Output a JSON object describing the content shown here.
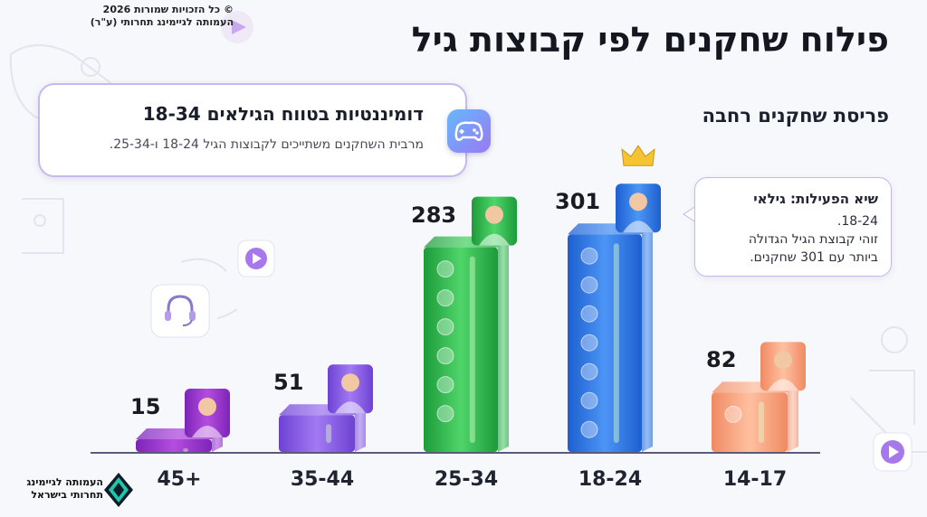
{
  "copyright": {
    "line1": "© כל הזכויות שמורות 2026",
    "line2": "העמותה לגיימינג תחרותי (ע\"ר)"
  },
  "title": "פילוח שחקנים לפי קבוצות גיל",
  "subtitle": "פריסת שחקנים רחבה",
  "info_card": {
    "title": "דומיננטיות בטווח הגילאים 18-34",
    "text": "מרבית השחקנים משתייכים לקבוצות הגיל 18-24 ו-25-34.",
    "icon": "gamepad-icon"
  },
  "callout": {
    "title": "שיא הפעילות: גילאי",
    "line1": "18-24.",
    "line2": "זוהי קבוצת הגיל הגדולה",
    "line3": "ביותר עם 301 שחקנים."
  },
  "logo": {
    "line1": "העמותה לגיימינג",
    "line2": "תחרותי בישראל"
  },
  "colors": {
    "bar_45": "#9b3bd6",
    "bar_35": "#8e5ee8",
    "bar_25": "#2fb84a",
    "bar_18": "#2f74e6",
    "bar_14": "#f59a72"
  },
  "chart_data": {
    "type": "bar",
    "title": "פילוח שחקנים לפי קבוצות גיל",
    "categories": [
      "45+",
      "35-44",
      "25-34",
      "18-24",
      "14-17"
    ],
    "values": [
      15,
      51,
      283,
      301,
      82
    ],
    "ylim": [
      0,
      320
    ],
    "xlabel": "",
    "ylabel": "",
    "grid": false,
    "legend": "none"
  }
}
